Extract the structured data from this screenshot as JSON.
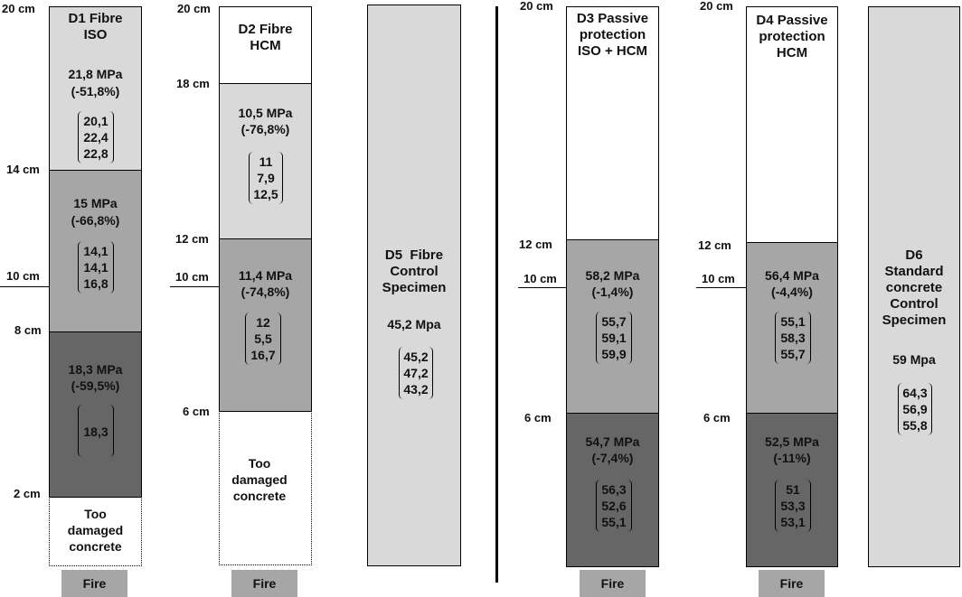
{
  "d1": {
    "title": "D1 Fibre\nISO",
    "ticks": [
      "20 cm",
      "14 cm",
      "10 cm",
      "8 cm",
      "2 cm"
    ],
    "seg1": {
      "mpa": "21,8 MPa",
      "pct": "(-51,8%)",
      "vals": "20,1\n22,4\n22,8"
    },
    "seg2": {
      "mpa": "15 MPa",
      "pct": "(-66,8%)",
      "vals": "14,1\n14,1\n16,8"
    },
    "seg3": {
      "mpa": "18,3 MPa",
      "pct": "(-59,5%)",
      "vals": "18,3"
    },
    "damaged": "Too\ndamaged\nconcrete",
    "fire": "Fire"
  },
  "d2": {
    "title": "D2 Fibre\nHCM",
    "ticks": [
      "20 cm",
      "18 cm",
      "12 cm",
      "10 cm",
      "6 cm"
    ],
    "seg1": {
      "mpa": "10,5 MPa",
      "pct": "(-76,8%)",
      "vals": "11\n7,9\n12,5"
    },
    "seg2": {
      "mpa": "11,4 MPa",
      "pct": "(-74,8%)",
      "vals": "12\n5,5\n16,7"
    },
    "damaged": "Too\ndamaged\nconcrete",
    "fire": "Fire"
  },
  "d5": {
    "title": "D5  Fibre\nControl\nSpecimen",
    "mpa": "45,2 Mpa",
    "vals": "45,2\n47,2\n43,2"
  },
  "d3": {
    "title": "D3 Passive\nprotection\nISO + HCM",
    "ticks": [
      "20 cm",
      "12 cm",
      "10 cm",
      "6 cm"
    ],
    "seg1": {
      "mpa": "58,2 MPa",
      "pct": "(-1,4%)",
      "vals": "55,7\n59,1\n59,9"
    },
    "seg2": {
      "mpa": "54,7 MPa",
      "pct": "(-7,4%)",
      "vals": "56,3\n52,6\n55,1"
    },
    "fire": "Fire"
  },
  "d4": {
    "title": "D4 Passive\nprotection\nHCM",
    "ticks": [
      "20 cm",
      "12 cm",
      "10 cm",
      "6 cm"
    ],
    "seg1": {
      "mpa": "56,4 MPa",
      "pct": "(-4,4%)",
      "vals": "55,1\n58,3\n55,7"
    },
    "seg2": {
      "mpa": "52,5 MPa",
      "pct": "(-11%)",
      "vals": "51\n53,3\n53,1"
    },
    "fire": "Fire"
  },
  "d6": {
    "title": "D6\nStandard\nconcrete\nControl\nSpecimen",
    "mpa": "59 Mpa",
    "vals": "64,3\n56,9\n55,8"
  },
  "colors": {
    "light": "#d9d9d9",
    "mid": "#a6a6a6",
    "dark": "#666666",
    "fire": "#a6a6a6"
  }
}
